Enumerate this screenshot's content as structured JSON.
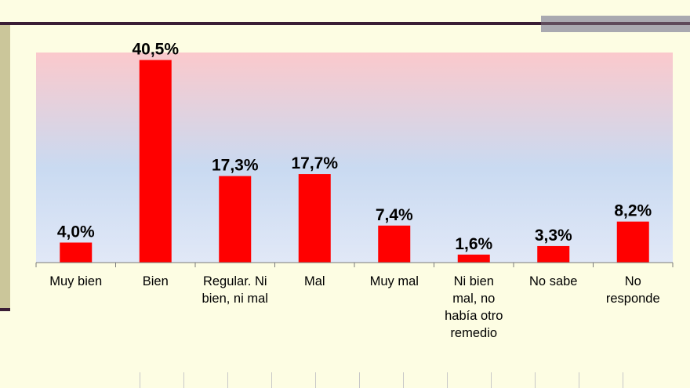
{
  "chart_data": {
    "type": "bar",
    "categories": [
      [
        "Muy bien"
      ],
      [
        "Bien"
      ],
      [
        "Regular. Ni",
        "bien, ni mal"
      ],
      [
        "Mal"
      ],
      [
        "Muy mal"
      ],
      [
        "Ni bien",
        "mal, no",
        "había otro",
        "remedio"
      ],
      [
        "No sabe"
      ],
      [
        "No",
        "responde"
      ]
    ],
    "values": [
      4.0,
      40.5,
      17.3,
      17.7,
      7.4,
      1.6,
      3.3,
      8.2
    ],
    "value_labels": [
      "4,0%",
      "40,5%",
      "17,3%",
      "17,7%",
      "7,4%",
      "1,6%",
      "3,3%",
      "8,2%"
    ],
    "ylim": [
      0,
      42
    ],
    "bar_color": "#ff0000",
    "plot_background": "gradient pink-to-blue",
    "grid": false,
    "legend": "none",
    "title": "",
    "xlabel": "",
    "ylabel": ""
  }
}
